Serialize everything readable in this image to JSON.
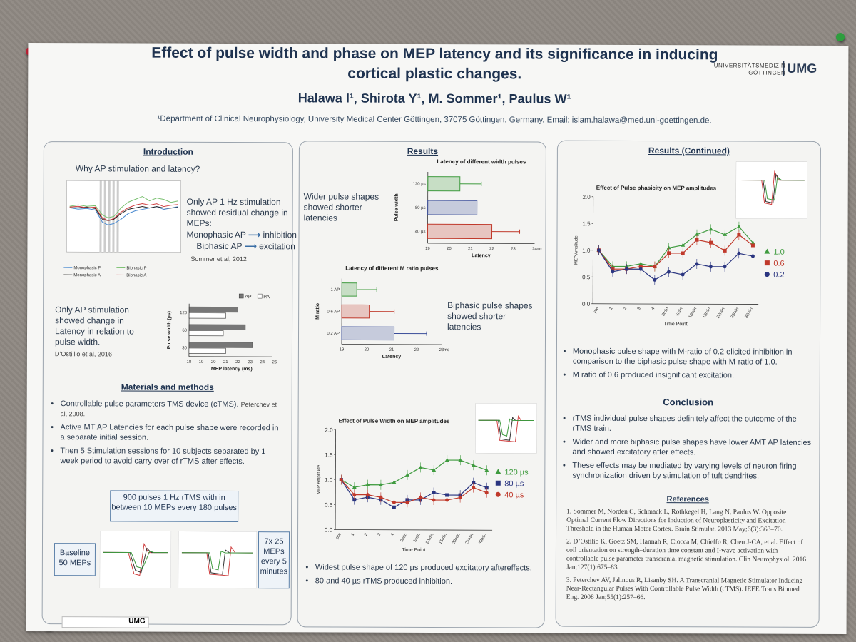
{
  "title_line1": "Effect of pulse width and phase on MEP latency and its significance in inducing",
  "title_line2": "cortical plastic changes.",
  "authors": "Halawa I¹, Shirota Y¹, M. Sommer¹, Paulus W¹",
  "affiliation": "¹Department of Clinical Neurophysiology, University Medical Center Göttingen, 37075 Göttingen, Germany. Email: islam.halawa@med.uni-goettingen.de.",
  "logo": {
    "line1": "UNIVERSITÄTSMEDIZIN",
    "line2": "GÖTTINGEN",
    "mark": "UMG"
  },
  "intro": {
    "heading": "Introduction",
    "question": "Why AP stimulation and latency?",
    "text1_line1": "Only AP 1 Hz stimulation",
    "text1_line2": "showed residual change in",
    "text1_line3": "MEPs:",
    "mono": "Monophasic AP",
    "mono_effect": "inhibition",
    "bi": "Biphasic AP",
    "bi_effect": "excitation",
    "cite1": "Sommer et al, 2012",
    "text2_line1": "Only AP stimulation",
    "text2_line2": "showed change in",
    "text2_line3": "Latency in relation to",
    "text2_line4": "pulse width.",
    "cite2": "D’Ostillio et al, 2016"
  },
  "materials": {
    "heading": "Materials and methods",
    "b1": "Controllable pulse parameters TMS device (cTMS).",
    "b1_cite": "Peterchev et al, 2008.",
    "b2": "Active MT AP Latencies for each pulse shape were recorded in a separate initial session.",
    "b3": "Then 5 Stimulation sessions for 10 subjects separated by 1 week period to avoid carry over of rTMS after effects.",
    "protocol": "900 pulses 1 Hz rTMS with in between 10 MEPs every 180 pulses",
    "baseline": "Baseline 50 MEPs",
    "post": "7x 25 MEPs every 5 minutes"
  },
  "results": {
    "heading": "Results",
    "text_width": "Wider pulse shapes showed shorter latencies",
    "text_ratio": "Biphasic pulse shapes showed shorter latencies",
    "b1": "Widest pulse shape of 120 µs produced excitatory aftereffects.",
    "b2": "80 and 40 µs rTMS produced inhibition."
  },
  "results2": {
    "heading": "Results (Continued)",
    "b1": "Monophasic pulse shape with M-ratio of 0.2 elicited inhibition in comparison to the biphasic pulse shape with M-ratio of 1.0.",
    "b2": "M ratio of 0.6 produced insignificant excitation."
  },
  "conclusion": {
    "heading": "Conclusion",
    "b1": "rTMS individual pulse shapes definitely affect the outcome of the rTMS train.",
    "b2": "Wider and more biphasic pulse shapes have lower AMT AP latencies and showed excitatory after effects.",
    "b3": "These effects may be mediated by varying levels of neuron firing synchronization driven by stimulation of tuft dendrites."
  },
  "references": {
    "heading": "References",
    "r1": "1. Sommer M, Norden C, Schmack L, Rothkegel H, Lang N, Paulus W. Opposite Optimal Current Flow Directions for Induction of Neuroplasticity and Excitation Threshold in the Human Motor Cortex. Brain Stimulat. 2013 May;6(3):363–70.",
    "r2": "2. D’Ostilio K, Goetz SM, Hannah R, Ciocca M, Chieffo R, Chen J-CA, et al. Effect of coil orientation on strength–duration time constant and I-wave activation with controllable pulse parameter transcranial magnetic stimulation. Clin Neurophysiol. 2016 Jan;127(1):675–83.",
    "r3": "3. Peterchev AV, Jalinous R, Lisanby SH. A Transcranial Magnetic Stimulator Inducing Near-Rectangular Pulses With Controllable Pulse Width (cTMS). IEEE Trans Biomed Eng. 2008 Jan;55(1):257–66."
  },
  "footer_logo": "UMG",
  "chart_data": [
    {
      "type": "bar",
      "orientation": "horizontal",
      "title": "Latency of different width pulses",
      "xlabel": "Latency",
      "ylabel": "Pulse width",
      "x_unit": "ms",
      "categories": [
        "120 µs",
        "80 µs",
        "40 µs"
      ],
      "values": [
        20.5,
        21.3,
        22.0
      ],
      "errors": [
        1.0,
        0.0,
        1.3
      ],
      "colors": [
        "#3f9b3f",
        "#3b4e9a",
        "#c0392b"
      ],
      "xlim": [
        19,
        24
      ],
      "xticks": [
        "19",
        "20",
        "21",
        "22",
        "23",
        "24"
      ]
    },
    {
      "type": "bar",
      "orientation": "horizontal",
      "title": "Latency of different M ratio pulses",
      "xlabel": "Latency",
      "ylabel": "M ratio",
      "x_unit": "ms",
      "categories": [
        "1 AP",
        "0.6 AP",
        "0.2 AP"
      ],
      "values": [
        19.6,
        20.1,
        21.1
      ],
      "errors": [
        0.8,
        1.0,
        1.3
      ],
      "colors": [
        "#3f9b3f",
        "#c0392b",
        "#3b4e9a"
      ],
      "xlim": [
        19,
        23
      ],
      "xticks": [
        "19",
        "20",
        "21",
        "22",
        "23"
      ]
    },
    {
      "type": "line",
      "title": "Effect of Pulse Width on MEP amplitudes",
      "xlabel": "Time Point",
      "ylabel": "MEP Amplitude",
      "x": [
        "pre",
        "1",
        "2",
        "3",
        "4",
        "0min",
        "5min",
        "10min",
        "15min",
        "20min",
        "25min",
        "30min"
      ],
      "ylim": [
        0.0,
        2.0
      ],
      "yticks": [
        "0.0",
        "0.5",
        "1.0",
        "1.5",
        "2.0"
      ],
      "series": [
        {
          "name": "120 µs",
          "marker": "triangle",
          "color": "#3f9b3f",
          "values": [
            1.0,
            0.85,
            0.9,
            0.9,
            0.95,
            1.1,
            1.25,
            1.2,
            1.4,
            1.4,
            1.3,
            1.2
          ]
        },
        {
          "name": "80 µs",
          "marker": "square",
          "color": "#2a3580",
          "values": [
            1.0,
            0.6,
            0.65,
            0.6,
            0.45,
            0.6,
            0.6,
            0.75,
            0.7,
            0.7,
            0.95,
            0.85
          ]
        },
        {
          "name": "40 µs",
          "marker": "circle",
          "color": "#c0392b",
          "values": [
            1.0,
            0.7,
            0.7,
            0.65,
            0.55,
            0.55,
            0.65,
            0.6,
            0.6,
            0.65,
            0.85,
            0.75
          ]
        }
      ]
    },
    {
      "type": "line",
      "title": "Effect of Pulse phasicity on MEP amplitudes",
      "xlabel": "Time Point",
      "ylabel": "MEP Amplitude",
      "x": [
        "pre",
        "1",
        "2",
        "3",
        "4",
        "0min",
        "5min",
        "10min",
        "15min",
        "20min",
        "25min",
        "30min"
      ],
      "ylim": [
        0.0,
        2.0
      ],
      "yticks": [
        "0.0",
        "0.5",
        "1.0",
        "1.5",
        "2.0"
      ],
      "series": [
        {
          "name": "1.0",
          "marker": "triangle",
          "color": "#3f9b3f",
          "values": [
            1.0,
            0.7,
            0.7,
            0.75,
            0.7,
            1.05,
            1.1,
            1.3,
            1.4,
            1.3,
            1.45,
            1.15
          ]
        },
        {
          "name": "0.6",
          "marker": "square",
          "color": "#c0392b",
          "values": [
            1.0,
            0.65,
            0.65,
            0.7,
            0.7,
            0.95,
            0.95,
            1.2,
            1.15,
            1.0,
            1.3,
            1.1
          ]
        },
        {
          "name": "0.2",
          "marker": "circle",
          "color": "#2a3580",
          "values": [
            1.0,
            0.6,
            0.65,
            0.65,
            0.45,
            0.6,
            0.55,
            0.75,
            0.7,
            0.7,
            0.95,
            0.9
          ]
        }
      ]
    },
    {
      "type": "bar",
      "orientation": "horizontal",
      "title": "",
      "xlabel": "MEP latency (ms)",
      "ylabel": "Pulse width (µs)",
      "categories": [
        "120",
        "60",
        "30"
      ],
      "legend": [
        "AP",
        "PA"
      ],
      "series": [
        {
          "name": "AP",
          "color": "#777777",
          "values": [
            22.0,
            22.6,
            23.2
          ]
        },
        {
          "name": "PA",
          "color": "#ffffff",
          "values": [
            21.0,
            20.8,
            21.0
          ]
        }
      ],
      "xlim": [
        18,
        25
      ],
      "xticks": [
        "18",
        "19",
        "20",
        "21",
        "22",
        "23",
        "24",
        "25"
      ]
    }
  ]
}
